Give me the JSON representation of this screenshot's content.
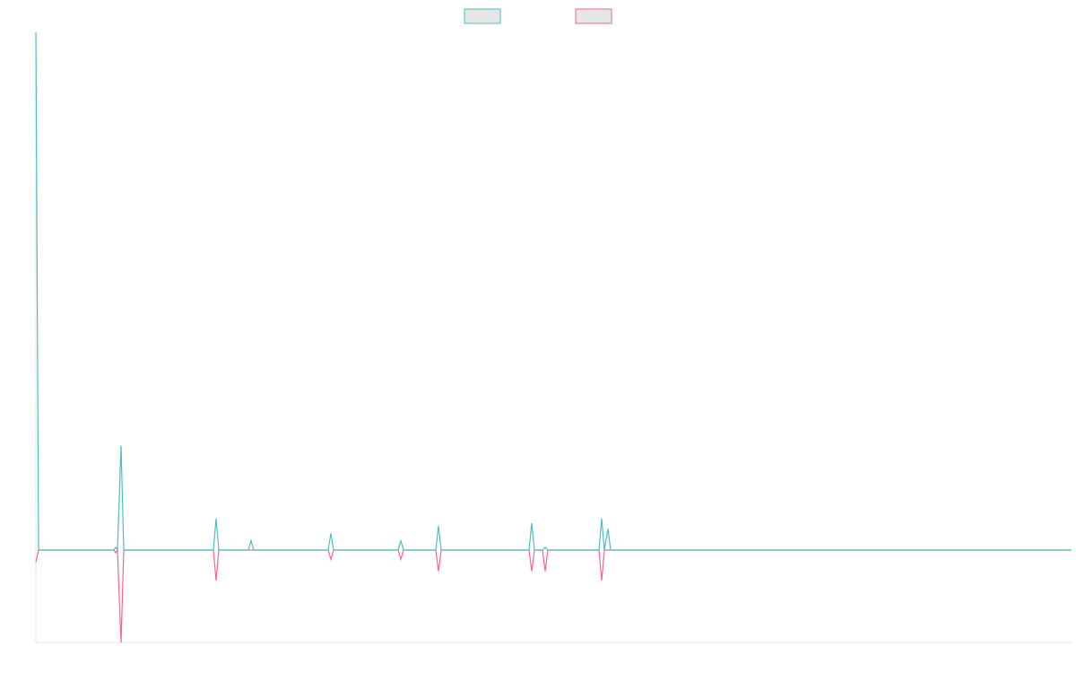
{
  "chart_data": {
    "type": "line",
    "x": [
      0,
      3,
      87,
      89,
      91,
      95,
      98,
      198,
      201,
      204,
      237,
      240,
      243,
      326,
      329,
      332,
      404,
      407,
      410,
      446,
      449,
      452,
      550,
      553,
      556,
      565,
      568,
      571,
      628,
      631,
      634,
      638,
      641,
      1155
    ],
    "xlim": [
      0,
      1155
    ],
    "ylim": [
      -10,
      56
    ],
    "legend": "top",
    "series": [
      {
        "color": "#4bc0c0",
        "values": [
          56,
          0,
          0,
          0.3,
          0,
          11.3,
          0,
          0,
          3.4,
          0,
          0,
          1.0,
          0,
          0,
          1.8,
          0,
          0,
          1.0,
          0,
          0,
          2.6,
          0,
          0,
          2.9,
          0,
          0,
          0.3,
          0,
          0,
          3.4,
          0,
          2.3,
          0,
          0
        ]
      },
      {
        "color": "#ff6384",
        "values": [
          -1.3,
          0,
          0,
          -0.3,
          0,
          -10,
          0,
          0,
          -3.3,
          0,
          0,
          0,
          0,
          0,
          -1.0,
          0,
          0,
          -1.0,
          0,
          0,
          -2.3,
          0,
          0,
          -2.3,
          0,
          0,
          -2.3,
          0,
          0,
          -3.3,
          0,
          0,
          0,
          0
        ]
      }
    ]
  }
}
